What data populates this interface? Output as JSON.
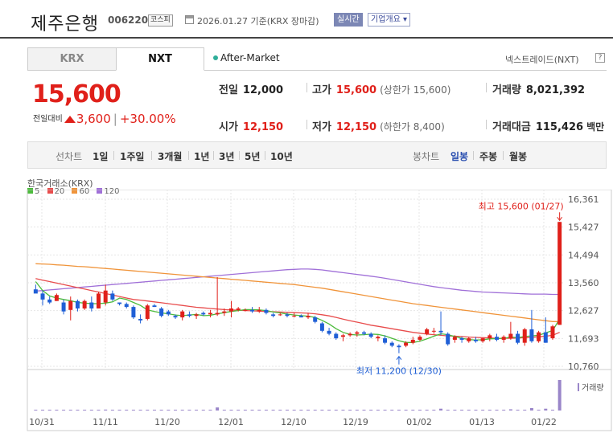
{
  "header": {
    "name": "제주은행",
    "code": "006220",
    "market": "코스피",
    "date_text": "2026.01.27 기준(KRX 장마감)",
    "realtime_label": "실시간",
    "company_label": "기업개요 ▾"
  },
  "tabs": [
    {
      "label": "KRX",
      "active": false
    },
    {
      "label": "NXT",
      "active": true
    }
  ],
  "after_market": "After-Market",
  "nxt_link": "넥스트레이드(NXT)",
  "help": "?",
  "price": {
    "current": "15,600",
    "change_label": "전일대비",
    "change": "3,600",
    "change_pct": "+30.00%"
  },
  "stats": {
    "prev_close_label": "전일",
    "prev_close": "12,000",
    "high_label": "고가",
    "high": "15,600",
    "high_note": "(상한가 15,600)",
    "volume_label": "거래량",
    "volume": "8,021,392",
    "open_label": "시가",
    "open": "12,150",
    "low_label": "저가",
    "low": "12,150",
    "low_note": "(하한가 8,400)",
    "amount_label": "거래대금",
    "amount": "115,426",
    "amount_unit": "백만"
  },
  "periods": {
    "line_label": "선차트",
    "line_items": [
      "1일",
      "1주일",
      "3개월",
      "1년",
      "3년",
      "5년",
      "10년"
    ],
    "candle_label": "봉차트",
    "candle_items": [
      "일봉",
      "주봉",
      "월봉"
    ],
    "active_candle": "일봉"
  },
  "chart_title": "한국거래소(KRX)",
  "colors": {
    "up": "#e0201a",
    "down": "#1f5fd6",
    "ma5": "#4cbb3c",
    "ma20": "#e84c4c",
    "ma60": "#f0943a",
    "ma120": "#a070d8",
    "volume": "#9a86c9"
  },
  "chart_data": {
    "type": "candlestick",
    "y_ticks": [
      "16,361",
      "15,427",
      "14,494",
      "13,560",
      "12,627",
      "11,693",
      "10,760"
    ],
    "ylim": [
      10760,
      16361
    ],
    "x_ticks": [
      "10/31",
      "11/11",
      "11/20",
      "12/01",
      "12/10",
      "12/19",
      "01/02",
      "01/13",
      "01/22"
    ],
    "legend": [
      "5",
      "20",
      "60",
      "120"
    ],
    "max_label": "최고 15,600 (01/27)",
    "min_label": "최저 11,200 (12/30)",
    "volume_label": "거래량",
    "candles": [
      [
        13340,
        13500,
        13250,
        13200
      ],
      [
        13200,
        13300,
        12800,
        13000
      ],
      [
        13000,
        13100,
        12850,
        12900
      ],
      [
        12950,
        13200,
        12950,
        13150
      ],
      [
        12900,
        13000,
        12500,
        12600
      ],
      [
        12650,
        13100,
        12300,
        12950
      ],
      [
        12950,
        13000,
        12600,
        12700
      ],
      [
        12700,
        13000,
        12650,
        12950
      ],
      [
        12900,
        13100,
        12600,
        12700
      ],
      [
        12700,
        13250,
        12700,
        13200
      ],
      [
        12900,
        13500,
        12800,
        13300
      ],
      [
        13200,
        13300,
        12950,
        13000
      ],
      [
        12900,
        12900,
        12800,
        12850
      ],
      [
        12850,
        12900,
        12700,
        12750
      ],
      [
        12750,
        12800,
        12350,
        12400
      ],
      [
        12350,
        12500,
        12200,
        12300
      ],
      [
        12350,
        12850,
        12300,
        12800
      ],
      [
        12800,
        12850,
        12750,
        12750
      ],
      [
        12700,
        12750,
        12400,
        12450
      ],
      [
        12600,
        12650,
        12450,
        12500
      ],
      [
        12450,
        12500,
        12350,
        12400
      ],
      [
        12400,
        12650,
        12300,
        12600
      ],
      [
        12500,
        12600,
        12400,
        12450
      ],
      [
        12450,
        12550,
        12350,
        12500
      ],
      [
        12550,
        12600,
        12450,
        12500
      ],
      [
        12500,
        12650,
        12400,
        12550
      ],
      [
        12500,
        13750,
        12450,
        12550
      ],
      [
        12550,
        12700,
        12450,
        12600
      ],
      [
        12600,
        12950,
        12400,
        12700
      ],
      [
        12650,
        12750,
        12600,
        12700
      ],
      [
        12650,
        12700,
        12600,
        12650
      ],
      [
        12650,
        12750,
        12550,
        12600
      ],
      [
        12600,
        12750,
        12550,
        12650
      ],
      [
        12650,
        12700,
        12500,
        12550
      ],
      [
        12500,
        12550,
        12400,
        12450
      ],
      [
        12500,
        12550,
        12450,
        12500
      ],
      [
        12500,
        12550,
        12400,
        12450
      ],
      [
        12450,
        12550,
        12400,
        12450
      ],
      [
        12450,
        12500,
        12400,
        12400
      ],
      [
        12400,
        12550,
        12350,
        12450
      ],
      [
        12400,
        12450,
        12200,
        12250
      ],
      [
        12200,
        12250,
        11900,
        11950
      ],
      [
        11950,
        12050,
        11800,
        11850
      ],
      [
        11850,
        11900,
        11650,
        11700
      ],
      [
        11750,
        11850,
        11600,
        11800
      ],
      [
        11800,
        11900,
        11750,
        11850
      ],
      [
        11850,
        11950,
        11750,
        11900
      ],
      [
        11900,
        11950,
        11800,
        11850
      ],
      [
        11850,
        11900,
        11700,
        11750
      ],
      [
        11700,
        11800,
        11600,
        11750
      ],
      [
        11700,
        11800,
        11500,
        11550
      ],
      [
        11550,
        11600,
        11400,
        11450
      ],
      [
        11450,
        11500,
        11200,
        11400
      ],
      [
        11450,
        11600,
        11400,
        11550
      ],
      [
        11550,
        11750,
        11500,
        11650
      ],
      [
        11650,
        11800,
        11600,
        11750
      ],
      [
        11850,
        12050,
        11800,
        12000
      ],
      [
        11950,
        12050,
        11850,
        11950
      ],
      [
        11950,
        12600,
        11800,
        11900
      ],
      [
        11850,
        11900,
        11450,
        11500
      ],
      [
        11650,
        11800,
        11550,
        11750
      ],
      [
        11700,
        11750,
        11550,
        11650
      ],
      [
        11600,
        11750,
        11550,
        11700
      ],
      [
        11650,
        11750,
        11550,
        11600
      ],
      [
        11600,
        11700,
        11550,
        11700
      ],
      [
        11700,
        11850,
        11600,
        11800
      ],
      [
        11750,
        11850,
        11600,
        11650
      ],
      [
        11650,
        11800,
        11550,
        11750
      ],
      [
        11700,
        12250,
        11650,
        11850
      ],
      [
        11850,
        11950,
        11500,
        11550
      ],
      [
        11550,
        12050,
        11450,
        12000
      ],
      [
        12000,
        12650,
        11550,
        11600
      ],
      [
        11600,
        11950,
        11550,
        11900
      ],
      [
        11900,
        12400,
        11550,
        11550
      ],
      [
        11700,
        12150,
        11650,
        12100
      ],
      [
        12150,
        15600,
        12150,
        15600
      ]
    ],
    "ma5": [
      13600,
      13300,
      13120,
      13050,
      13000,
      12960,
      12900,
      12880,
      12860,
      12860,
      12880,
      12920,
      13050,
      13000,
      12900,
      12800,
      12650,
      12600,
      12550,
      12520,
      12480,
      12460,
      12480,
      12500,
      12460,
      12470,
      12520,
      12560,
      12600,
      12630,
      12660,
      12660,
      12650,
      12630,
      12580,
      12550,
      12510,
      12480,
      12460,
      12440,
      12400,
      12300,
      12180,
      12020,
      11900,
      11830,
      11810,
      11820,
      11840,
      11830,
      11780,
      11700,
      11620,
      11560,
      11560,
      11600,
      11680,
      11770,
      11850,
      11820,
      11760,
      11700,
      11660,
      11640,
      11650,
      11680,
      11690,
      11700,
      11740,
      11720,
      11760,
      11780,
      11800,
      11880,
      11960,
      12350
    ],
    "ma20": [
      13700,
      13650,
      13600,
      13550,
      13500,
      13450,
      13400,
      13350,
      13300,
      13250,
      13200,
      13150,
      13100,
      13050,
      13000,
      12980,
      12950,
      12920,
      12890,
      12860,
      12830,
      12800,
      12770,
      12740,
      12720,
      12700,
      12680,
      12660,
      12650,
      12640,
      12630,
      12620,
      12610,
      12600,
      12590,
      12580,
      12570,
      12560,
      12550,
      12540,
      12520,
      12490,
      12450,
      12400,
      12340,
      12290,
      12240,
      12190,
      12140,
      12100,
      12060,
      12020,
      11980,
      11940,
      11900,
      11870,
      11840,
      11820,
      11800,
      11780,
      11770,
      11760,
      11740,
      11730,
      11720,
      11710,
      11700,
      11700,
      11700,
      11710,
      11720,
      11730,
      11750,
      11770,
      11800,
      11900
    ],
    "ma60": [
      14200,
      14190,
      14180,
      14160,
      14150,
      14130,
      14110,
      14100,
      14080,
      14060,
      14040,
      14020,
      14000,
      13980,
      13960,
      13940,
      13920,
      13900,
      13880,
      13860,
      13840,
      13820,
      13800,
      13780,
      13760,
      13740,
      13720,
      13700,
      13680,
      13660,
      13640,
      13620,
      13600,
      13580,
      13560,
      13540,
      13520,
      13500,
      13470,
      13440,
      13410,
      13380,
      13340,
      13300,
      13260,
      13220,
      13180,
      13140,
      13100,
      13060,
      13020,
      12980,
      12940,
      12900,
      12860,
      12830,
      12800,
      12770,
      12740,
      12710,
      12680,
      12650,
      12620,
      12590,
      12560,
      12530,
      12500,
      12470,
      12440,
      12410,
      12380,
      12350,
      12320,
      12290,
      12260,
      12260
    ],
    "ma120": [
      13280,
      13300,
      13320,
      13340,
      13360,
      13380,
      13400,
      13420,
      13440,
      13460,
      13480,
      13500,
      13520,
      13540,
      13560,
      13580,
      13600,
      13620,
      13640,
      13660,
      13680,
      13700,
      13720,
      13740,
      13760,
      13780,
      13800,
      13820,
      13840,
      13860,
      13880,
      13900,
      13920,
      13940,
      13960,
      13980,
      14000,
      14010,
      14020,
      14020,
      14010,
      13990,
      13960,
      13930,
      13900,
      13870,
      13840,
      13810,
      13780,
      13750,
      13710,
      13670,
      13630,
      13590,
      13550,
      13510,
      13470,
      13430,
      13400,
      13370,
      13340,
      13310,
      13290,
      13270,
      13250,
      13240,
      13230,
      13220,
      13210,
      13200,
      13190,
      13180,
      13180,
      13180,
      13170,
      13170
    ],
    "volume": [
      2,
      1,
      1,
      1,
      2,
      1,
      1,
      1,
      1,
      2,
      3,
      1,
      1,
      1,
      1,
      1,
      1,
      1,
      1,
      1,
      1,
      1,
      1,
      1,
      1,
      1,
      10,
      1,
      2,
      1,
      1,
      1,
      1,
      1,
      1,
      1,
      1,
      1,
      1,
      1,
      1,
      2,
      1,
      1,
      1,
      1,
      1,
      1,
      1,
      1,
      1,
      1,
      2,
      1,
      1,
      1,
      2,
      1,
      6,
      1,
      1,
      1,
      1,
      1,
      1,
      1,
      1,
      1,
      4,
      1,
      2,
      8,
      1,
      6,
      2,
      100
    ]
  }
}
